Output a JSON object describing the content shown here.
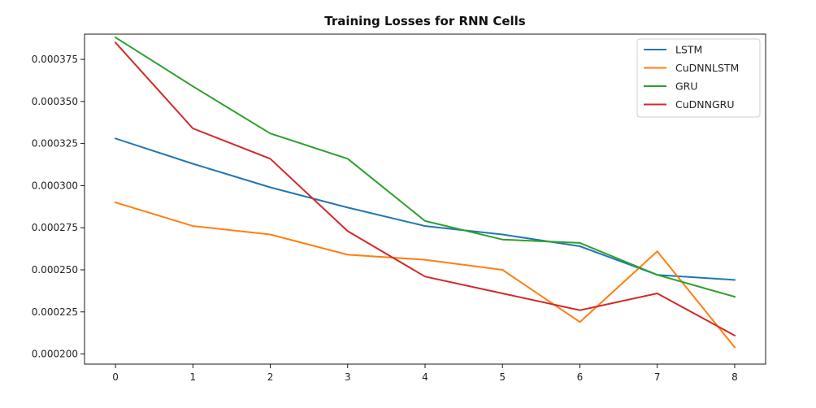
{
  "chart_data": {
    "type": "line",
    "title": "Training Losses for RNN Cells",
    "xlabel": "",
    "ylabel": "",
    "x": [
      0,
      1,
      2,
      3,
      4,
      5,
      6,
      7,
      8
    ],
    "xlim": [
      -0.4,
      8.4
    ],
    "ylim": [
      0.000194,
      0.00039
    ],
    "xticks": [
      0,
      1,
      2,
      3,
      4,
      5,
      6,
      7,
      8
    ],
    "yticks": [
      0.0002,
      0.000225,
      0.00025,
      0.000275,
      0.0003,
      0.000325,
      0.00035,
      0.000375
    ],
    "ytick_labels": [
      "0.000200",
      "0.000225",
      "0.000250",
      "0.000275",
      "0.000300",
      "0.000325",
      "0.000350",
      "0.000375"
    ],
    "grid": false,
    "legend_position": "upper right",
    "series": [
      {
        "name": "LSTM",
        "color": "#1f77b4",
        "values": [
          0.000328,
          0.000313,
          0.000299,
          0.000287,
          0.000276,
          0.000271,
          0.000264,
          0.000247,
          0.000244
        ]
      },
      {
        "name": "CuDNNLSTM",
        "color": "#ff7f0e",
        "values": [
          0.00029,
          0.000276,
          0.000271,
          0.000259,
          0.000256,
          0.00025,
          0.000219,
          0.000261,
          0.000204
        ]
      },
      {
        "name": "GRU",
        "color": "#2ca02c",
        "values": [
          0.000388,
          0.000359,
          0.000331,
          0.000316,
          0.000279,
          0.000268,
          0.000266,
          0.000247,
          0.000234
        ]
      },
      {
        "name": "CuDNNGRU",
        "color": "#d62728",
        "values": [
          0.000385,
          0.000334,
          0.000316,
          0.000273,
          0.000246,
          0.000236,
          0.000226,
          0.000236,
          0.000211
        ]
      }
    ]
  }
}
